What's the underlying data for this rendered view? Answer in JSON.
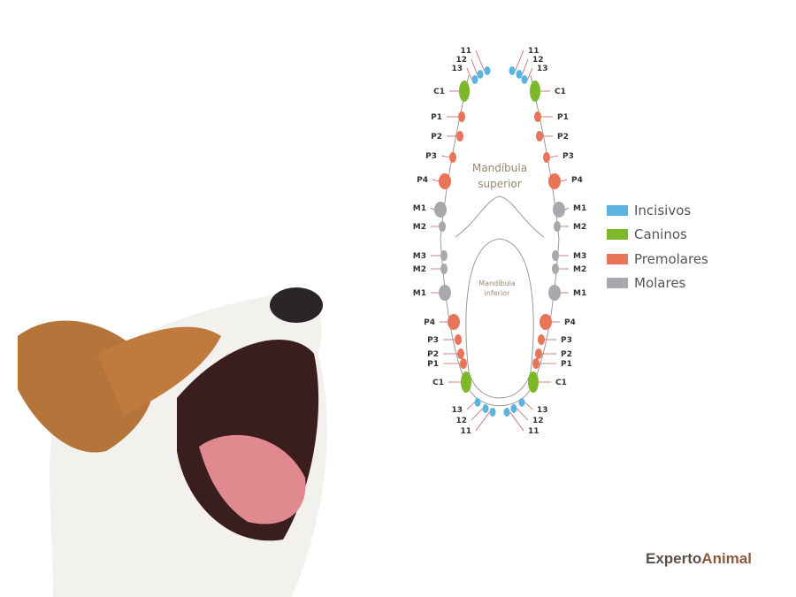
{
  "diagram": {
    "upper_jaw_label": [
      "Mandíbula",
      "superior"
    ],
    "lower_jaw_label": [
      "Mandíbula",
      "inferior"
    ],
    "upper_teeth": [
      {
        "label": "11",
        "type": "incisor"
      },
      {
        "label": "12",
        "type": "incisor"
      },
      {
        "label": "13",
        "type": "incisor"
      },
      {
        "label": "C1",
        "type": "canine"
      },
      {
        "label": "P1",
        "type": "premolar"
      },
      {
        "label": "P2",
        "type": "premolar"
      },
      {
        "label": "P3",
        "type": "premolar"
      },
      {
        "label": "P4",
        "type": "premolar"
      },
      {
        "label": "M1",
        "type": "molar"
      },
      {
        "label": "M2",
        "type": "molar"
      }
    ],
    "lower_teeth": [
      {
        "label": "M3",
        "type": "molar"
      },
      {
        "label": "M2",
        "type": "molar"
      },
      {
        "label": "M1",
        "type": "molar"
      },
      {
        "label": "P4",
        "type": "premolar"
      },
      {
        "label": "P3",
        "type": "premolar"
      },
      {
        "label": "P2",
        "type": "premolar"
      },
      {
        "label": "P1",
        "type": "premolar"
      },
      {
        "label": "C1",
        "type": "canine"
      },
      {
        "label": "13",
        "type": "incisor"
      },
      {
        "label": "12",
        "type": "incisor"
      },
      {
        "label": "11",
        "type": "incisor"
      }
    ]
  },
  "legend": [
    {
      "label": "Incisivos",
      "color": "#5bb4e0"
    },
    {
      "label": "Caninos",
      "color": "#7cb82a"
    },
    {
      "label": "Premolares",
      "color": "#e8745a"
    },
    {
      "label": "Molares",
      "color": "#a9a9ad"
    }
  ],
  "logo": {
    "part1": "Experto",
    "part2": "Animal"
  }
}
